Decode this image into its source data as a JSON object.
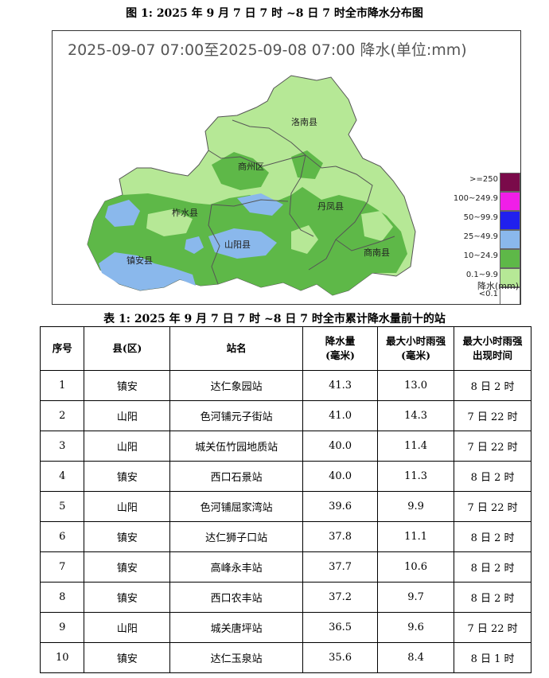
{
  "figure": {
    "title": "图 1: 2025 年 9 月 7 日 7 时 ~8 日 7 时全市降水分布图",
    "map_heading": "2025-09-07 07:00至2025-09-08 07:00 降水(单位:mm)",
    "counties": [
      "洛南县",
      "商州区",
      "柞水县",
      "丹凤县",
      "镇安县",
      "山阳县",
      "商南县"
    ],
    "legend": [
      {
        "label": ">=250",
        "color": "#7a0a4a"
      },
      {
        "label": "100~249.9",
        "color": "#f01ee8"
      },
      {
        "label": "50~99.9",
        "color": "#2020ee"
      },
      {
        "label": "25~49.9",
        "color": "#8ab8ec"
      },
      {
        "label": "10~24.9",
        "color": "#5eb848"
      },
      {
        "label": "0.1~9.9",
        "color": "#b6e896"
      },
      {
        "label": "<0.1",
        "color": "#ffffff"
      }
    ],
    "legend_unit": "降水(mm)"
  },
  "table": {
    "title": "表 1: 2025 年 9 月 7 日 7 时 ~8 日 7 时全市累计降水量前十的站",
    "headers": [
      "序号",
      "县(区)",
      "站名",
      "降水量\n(毫米)",
      "最大小时雨强\n(毫米)",
      "最大小时雨强\n出现时间"
    ],
    "rows": [
      [
        "1",
        "镇安",
        "达仁象园站",
        "41.3",
        "13.0",
        "8 日 2 时"
      ],
      [
        "2",
        "山阳",
        "色河铺元子街站",
        "41.0",
        "14.3",
        "7 日 22 时"
      ],
      [
        "3",
        "山阳",
        "城关伍竹园地质站",
        "40.0",
        "11.4",
        "7 日 22 时"
      ],
      [
        "4",
        "镇安",
        "西口石景站",
        "40.0",
        "11.3",
        "8 日 2 时"
      ],
      [
        "5",
        "山阳",
        "色河铺屈家湾站",
        "39.6",
        "9.9",
        "7 日 22 时"
      ],
      [
        "6",
        "镇安",
        "达仁狮子口站",
        "37.8",
        "11.1",
        "8 日 2 时"
      ],
      [
        "7",
        "镇安",
        "高峰永丰站",
        "37.7",
        "10.6",
        "8 日 2 时"
      ],
      [
        "8",
        "镇安",
        "西口农丰站",
        "37.2",
        "9.7",
        "8 日 2 时"
      ],
      [
        "9",
        "山阳",
        "城关唐坪站",
        "36.5",
        "9.6",
        "7 日 22 时"
      ],
      [
        "10",
        "镇安",
        "达仁玉泉站",
        "35.6",
        "8.4",
        "8 日 1 时"
      ]
    ]
  }
}
